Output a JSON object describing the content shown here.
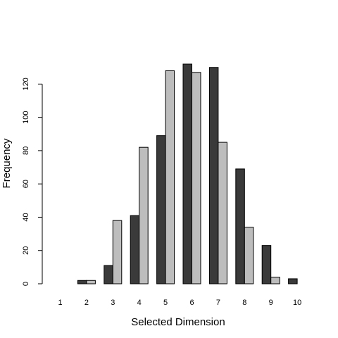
{
  "chart_data": {
    "type": "bar",
    "title": "",
    "xlabel": "Selected Dimension",
    "ylabel": "Frequency",
    "categories": [
      "1",
      "2",
      "3",
      "4",
      "5",
      "6",
      "7",
      "8",
      "9",
      "10"
    ],
    "series": [
      {
        "values": [
          0,
          2,
          11,
          41,
          89,
          132,
          130,
          69,
          23,
          3
        ],
        "color": "#3a3a3a"
      },
      {
        "values": [
          0,
          2,
          38,
          82,
          128,
          127,
          85,
          34,
          4,
          0
        ],
        "color": "#bdbdbd"
      }
    ],
    "yticks": [
      0,
      20,
      40,
      60,
      80,
      100,
      120
    ],
    "ylim": [
      0,
      132
    ],
    "grid": false,
    "legend": false
  }
}
